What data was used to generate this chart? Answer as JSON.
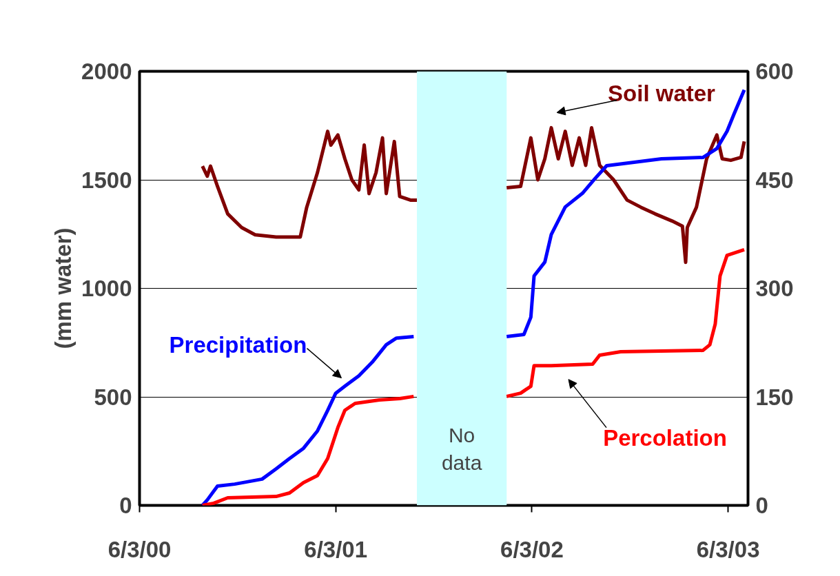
{
  "chart_data": {
    "type": "line",
    "ylabel": "(mm water)",
    "xlim": [
      "2000-06-03",
      "2003-07-10"
    ],
    "xticks": [
      {
        "value": "2000-06-03",
        "label": "6/3/00"
      },
      {
        "value": "2001-06-03",
        "label": "6/3/01"
      },
      {
        "value": "2002-06-03",
        "label": "6/3/02"
      },
      {
        "value": "2003-06-03",
        "label": "6/3/03"
      }
    ],
    "ylim": [
      0,
      2000
    ],
    "yticks": [
      0,
      500,
      1000,
      1500,
      2000
    ],
    "y2lim": [
      0,
      600
    ],
    "y2ticks": [
      0,
      150,
      300,
      450,
      600
    ],
    "grid": "y",
    "marker": "none",
    "line_style": "solid",
    "bands": [
      {
        "axis": "x",
        "from": "2001-11-01",
        "to": "2002-04-17",
        "label": "No data",
        "color": "#ccffff"
      }
    ],
    "series": [
      {
        "name": "Soil water",
        "color": "#800000",
        "axis": "y2",
        "x": [
          "2000-09-28",
          "2000-10-07",
          "2000-10-13",
          "2000-10-26",
          "2000-11-14",
          "2000-12-10",
          "2001-01-04",
          "2001-02-12",
          "2001-03-29",
          "2001-04-10",
          "2001-04-30",
          "2001-05-19",
          "2001-05-25",
          "2001-06-07",
          "2001-06-20",
          "2001-07-03",
          "2001-07-16",
          "2001-07-26",
          "2001-08-04",
          "2001-08-17",
          "2001-08-29",
          "2001-09-05",
          "2001-09-20",
          "2001-09-30",
          "2001-10-20",
          "2001-11-01",
          "2002-01-01",
          "2002-04-17",
          "2002-05-13",
          "2002-06-01",
          "2002-06-14",
          "2002-06-27",
          "2002-07-09",
          "2002-07-22",
          "2002-08-04",
          "2002-08-17",
          "2002-08-30",
          "2002-09-11",
          "2002-09-22",
          "2002-10-07",
          "2002-11-02",
          "2002-11-27",
          "2002-12-23",
          "2003-01-18",
          "2003-02-19",
          "2003-03-10",
          "2003-03-16",
          "2003-03-19",
          "2003-04-05",
          "2003-04-24",
          "2003-05-13",
          "2003-05-23",
          "2003-06-08",
          "2003-06-27",
          "2003-07-03"
        ],
        "values": [
          469,
          455,
          469,
          441,
          403,
          384,
          374,
          371,
          371,
          412,
          460,
          517,
          498,
          512,
          479,
          450,
          436,
          498,
          431,
          460,
          508,
          431,
          503,
          427,
          422,
          422,
          null,
          439,
          441,
          508,
          450,
          479,
          522,
          479,
          517,
          470,
          508,
          470,
          522,
          470,
          450,
          422,
          412,
          403,
          393,
          386,
          336,
          384,
          412,
          479,
          512,
          479,
          477,
          481,
          503
        ]
      },
      {
        "name": "Precipitation",
        "color": "#0000ff",
        "x": [
          "2000-09-28",
          "2000-10-07",
          "2000-10-26",
          "2000-11-27",
          "2001-01-17",
          "2001-02-12",
          "2001-03-09",
          "2001-04-04",
          "2001-04-30",
          "2001-05-19",
          "2001-06-03",
          "2001-06-20",
          "2001-07-16",
          "2001-08-10",
          "2001-09-05",
          "2001-09-24",
          "2001-10-26",
          "2002-01-01",
          "2002-04-17",
          "2002-05-19",
          "2002-06-01",
          "2002-06-07",
          "2002-06-27",
          "2002-07-09",
          "2002-08-04",
          "2002-09-05",
          "2002-09-27",
          "2002-10-20",
          "2002-12-10",
          "2003-01-30",
          "2003-04-17",
          "2003-05-13",
          "2003-06-01",
          "2003-06-14",
          "2003-07-03"
        ],
        "values": [
          0,
          25,
          89,
          98,
          121,
          168,
          216,
          263,
          343,
          438,
          517,
          549,
          597,
          660,
          740,
          771,
          778,
          null,
          778,
          787,
          867,
          1057,
          1121,
          1248,
          1375,
          1438,
          1502,
          1565,
          1581,
          1597,
          1603,
          1644,
          1724,
          1803,
          1914
        ]
      },
      {
        "name": "Percolation",
        "color": "#ff0000",
        "x": [
          "2000-09-28",
          "2000-10-19",
          "2000-11-14",
          "2001-02-12",
          "2001-03-09",
          "2001-04-04",
          "2001-04-30",
          "2001-05-19",
          "2001-06-07",
          "2001-06-20",
          "2001-07-09",
          "2001-08-23",
          "2001-09-30",
          "2001-10-26",
          "2002-01-01",
          "2002-04-17",
          "2002-05-13",
          "2002-06-01",
          "2002-06-07",
          "2002-07-09",
          "2002-09-24",
          "2002-10-07",
          "2002-11-15",
          "2003-04-17",
          "2003-04-30",
          "2003-05-10",
          "2003-05-19",
          "2003-06-01",
          "2003-07-03"
        ],
        "values": [
          0,
          10,
          35,
          41,
          57,
          105,
          137,
          216,
          359,
          438,
          470,
          486,
          492,
          502,
          null,
          502,
          517,
          549,
          644,
          644,
          651,
          692,
          708,
          714,
          740,
          835,
          1057,
          1152,
          1178
        ]
      }
    ]
  }
}
